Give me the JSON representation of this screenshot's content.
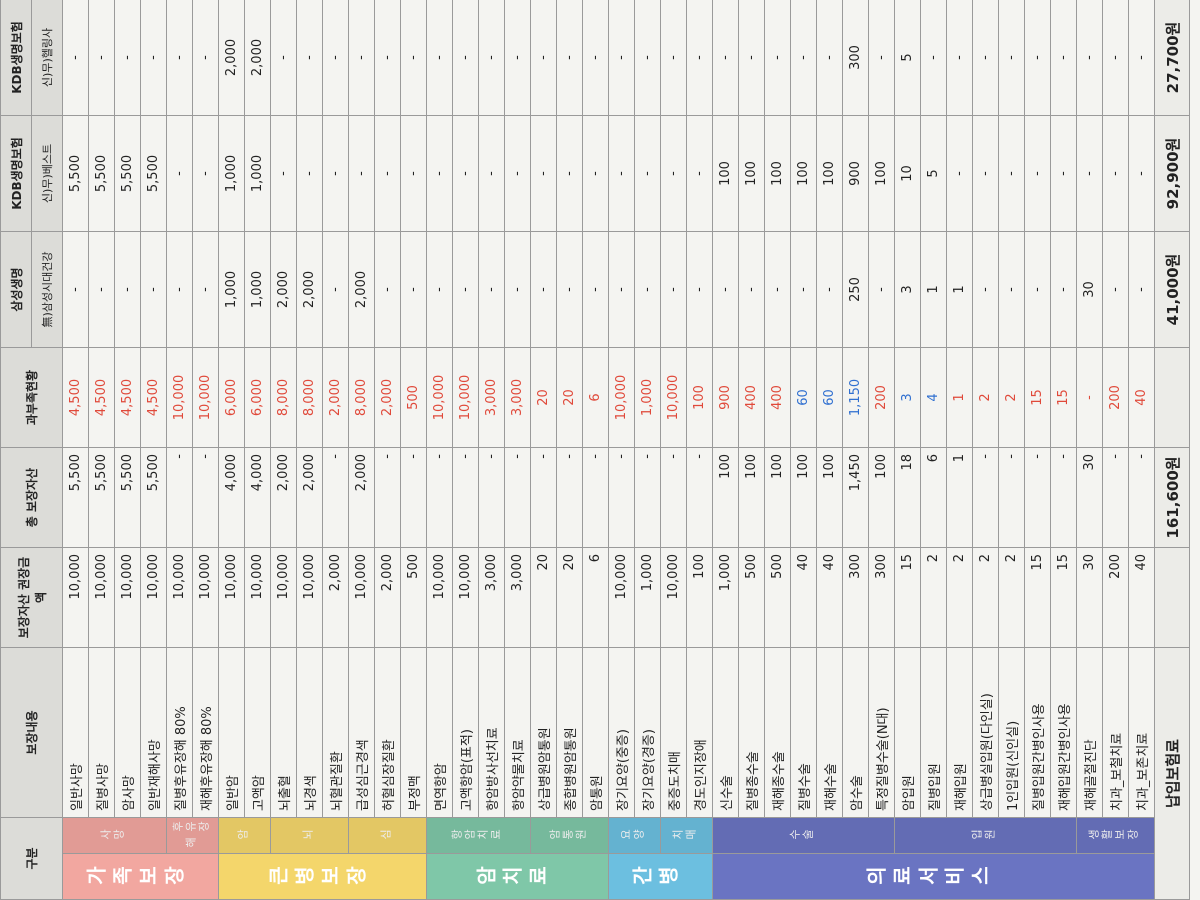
{
  "header": {
    "group": "구분",
    "content": "보장내용",
    "recommended": "보장자산 권장금액",
    "total": "총 보장자산",
    "gap": "과부족현황",
    "companies": [
      "삼성생명",
      "KDB생명보험",
      "KDB생명보험"
    ],
    "products": [
      "無)삼성시대건강",
      "신)무)베스트",
      "신)무)헬링사"
    ]
  },
  "groups": [
    {
      "label": "가족보장",
      "color": "#f2a7a0",
      "subs": [
        {
          "label": "사망",
          "rows": [
            {
              "cells": [
                "일반사망",
                "10,000",
                "5,500",
                "4,500",
                "-",
                "5,500",
                "-"
              ],
              "gap_color": "#e0493a"
            },
            {
              "cells": [
                "질병사망",
                "10,000",
                "5,500",
                "4,500",
                "-",
                "5,500",
                "-"
              ],
              "gap_color": "#e0493a"
            },
            {
              "cells": [
                "암사망",
                "10,000",
                "5,500",
                "4,500",
                "-",
                "5,500",
                "-"
              ],
              "gap_color": "#e0493a"
            },
            {
              "cells": [
                "일반재해사망",
                "10,000",
                "5,500",
                "4,500",
                "-",
                "5,500",
                "-"
              ],
              "gap_color": "#e0493a"
            }
          ]
        },
        {
          "label": "후유장해",
          "rows": [
            {
              "cells": [
                "질병후유장해 80%",
                "10,000",
                "-",
                "10,000",
                "-",
                "-",
                "-"
              ],
              "gap_color": "#e0493a"
            },
            {
              "cells": [
                "재해후유장해 80%",
                "10,000",
                "-",
                "10,000",
                "-",
                "-",
                "-"
              ],
              "gap_color": "#e0493a"
            }
          ]
        }
      ]
    },
    {
      "label": "큰병보장",
      "color": "#f4d66b",
      "subs": [
        {
          "label": "암",
          "rows": [
            {
              "cells": [
                "일반암",
                "10,000",
                "4,000",
                "6,000",
                "1,000",
                "1,000",
                "2,000"
              ],
              "gap_color": "#e0493a"
            },
            {
              "cells": [
                "고액암",
                "10,000",
                "4,000",
                "6,000",
                "1,000",
                "1,000",
                "2,000"
              ],
              "gap_color": "#e0493a"
            }
          ]
        },
        {
          "label": "뇌",
          "rows": [
            {
              "cells": [
                "뇌출혈",
                "10,000",
                "2,000",
                "8,000",
                "2,000",
                "-",
                "-"
              ],
              "gap_color": "#e0493a"
            },
            {
              "cells": [
                "뇌경색",
                "10,000",
                "2,000",
                "8,000",
                "2,000",
                "-",
                "-"
              ],
              "gap_color": "#e0493a"
            },
            {
              "cells": [
                "뇌혈관질환",
                "2,000",
                "-",
                "2,000",
                "-",
                "-",
                "-"
              ],
              "gap_color": "#e0493a"
            }
          ]
        },
        {
          "label": "심",
          "rows": [
            {
              "cells": [
                "급성심근경색",
                "10,000",
                "2,000",
                "8,000",
                "2,000",
                "-",
                "-"
              ],
              "gap_color": "#e0493a"
            },
            {
              "cells": [
                "허혈심장질환",
                "2,000",
                "-",
                "2,000",
                "-",
                "-",
                "-"
              ],
              "gap_color": "#e0493a"
            },
            {
              "cells": [
                "부정맥",
                "500",
                "-",
                "500",
                "-",
                "-",
                "-"
              ],
              "gap_color": "#e0493a"
            }
          ]
        }
      ]
    },
    {
      "label": "암치료",
      "color": "#7fc7a8",
      "subs": [
        {
          "label": "항암치료",
          "rows": [
            {
              "cells": [
                "면역항암",
                "10,000",
                "-",
                "10,000",
                "-",
                "-",
                "-"
              ],
              "gap_color": "#e0493a"
            },
            {
              "cells": [
                "고액항암(표적)",
                "10,000",
                "-",
                "10,000",
                "-",
                "-",
                "-"
              ],
              "gap_color": "#e0493a"
            },
            {
              "cells": [
                "항암방사선치료",
                "3,000",
                "-",
                "3,000",
                "-",
                "-",
                "-"
              ],
              "gap_color": "#e0493a"
            },
            {
              "cells": [
                "항암약물치료",
                "3,000",
                "-",
                "3,000",
                "-",
                "-",
                "-"
              ],
              "gap_color": "#e0493a"
            }
          ]
        },
        {
          "label": "암통원",
          "rows": [
            {
              "cells": [
                "상급병원암통원",
                "20",
                "-",
                "20",
                "-",
                "-",
                "-"
              ],
              "gap_color": "#e0493a"
            },
            {
              "cells": [
                "종합병원암통원",
                "20",
                "-",
                "20",
                "-",
                "-",
                "-"
              ],
              "gap_color": "#e0493a"
            },
            {
              "cells": [
                "암통원",
                "6",
                "-",
                "6",
                "-",
                "-",
                "-"
              ],
              "gap_color": "#e0493a"
            }
          ]
        }
      ]
    },
    {
      "label": "간병",
      "color": "#6cbfe0",
      "subs": [
        {
          "label": "요양",
          "rows": [
            {
              "cells": [
                "장기요양(중증)",
                "10,000",
                "-",
                "10,000",
                "-",
                "-",
                "-"
              ],
              "gap_color": "#e0493a"
            },
            {
              "cells": [
                "장기요양(경증)",
                "1,000",
                "-",
                "1,000",
                "-",
                "-",
                "-"
              ],
              "gap_color": "#e0493a"
            }
          ]
        },
        {
          "label": "치매",
          "rows": [
            {
              "cells": [
                "중증도치매",
                "10,000",
                "-",
                "10,000",
                "-",
                "-",
                "-"
              ],
              "gap_color": "#e0493a"
            },
            {
              "cells": [
                "경도인지장애",
                "100",
                "-",
                "100",
                "-",
                "-",
                "-"
              ],
              "gap_color": "#e0493a"
            }
          ]
        }
      ]
    },
    {
      "label": "의료서비스",
      "color": "#6a74c2",
      "subs": [
        {
          "label": "수술",
          "rows": [
            {
              "cells": [
                "신수술",
                "1,000",
                "100",
                "900",
                "-",
                "100",
                "-"
              ],
              "gap_color": "#e0493a"
            },
            {
              "cells": [
                "질병종수술",
                "500",
                "100",
                "400",
                "-",
                "100",
                "-"
              ],
              "gap_color": "#e0493a"
            },
            {
              "cells": [
                "재해종수술",
                "500",
                "100",
                "400",
                "-",
                "100",
                "-"
              ],
              "gap_color": "#e0493a"
            },
            {
              "cells": [
                "질병수술",
                "40",
                "100",
                "60",
                "-",
                "100",
                "-"
              ],
              "gap_color": "#2f6fd0"
            },
            {
              "cells": [
                "재해수술",
                "40",
                "100",
                "60",
                "-",
                "100",
                "-"
              ],
              "gap_color": "#2f6fd0"
            },
            {
              "cells": [
                "암수술",
                "300",
                "1,450",
                "1,150",
                "250",
                "900",
                "300"
              ],
              "gap_color": "#2f6fd0"
            },
            {
              "cells": [
                "특정질병수술(N대)",
                "300",
                "100",
                "200",
                "-",
                "100",
                "-"
              ],
              "gap_color": "#e0493a"
            }
          ]
        },
        {
          "label": "입원",
          "rows": [
            {
              "cells": [
                "암입원",
                "15",
                "18",
                "3",
                "3",
                "10",
                "5"
              ],
              "gap_color": "#2f6fd0"
            },
            {
              "cells": [
                "질병입원",
                "2",
                "6",
                "4",
                "1",
                "5",
                "-"
              ],
              "gap_color": "#2f6fd0"
            },
            {
              "cells": [
                "재해입원",
                "2",
                "1",
                "1",
                "1",
                "-",
                "-"
              ],
              "gap_color": "#e0493a"
            },
            {
              "cells": [
                "상급병실입원(다인실)",
                "2",
                "-",
                "2",
                "-",
                "-",
                "-"
              ],
              "gap_color": "#e0493a"
            },
            {
              "cells": [
                "1인입원(신인실)",
                "2",
                "-",
                "2",
                "-",
                "-",
                "-"
              ],
              "gap_color": "#e0493a"
            },
            {
              "cells": [
                "질병입원간병인사용",
                "15",
                "-",
                "15",
                "-",
                "-",
                "-"
              ],
              "gap_color": "#e0493a"
            },
            {
              "cells": [
                "재해입원간병인사용",
                "15",
                "-",
                "15",
                "-",
                "-",
                "-"
              ],
              "gap_color": "#e0493a"
            }
          ]
        },
        {
          "label": "생활보장",
          "rows": [
            {
              "cells": [
                "재해골절진단",
                "30",
                "30",
                "-",
                "30",
                "-",
                "-"
              ],
              "gap_color": "#e0493a"
            },
            {
              "cells": [
                "치과_보철치료",
                "200",
                "-",
                "200",
                "-",
                "-",
                "-"
              ],
              "gap_color": "#e0493a"
            },
            {
              "cells": [
                "치과_보존치료",
                "40",
                "-",
                "40",
                "-",
                "-",
                "-"
              ],
              "gap_color": "#e0493a"
            }
          ]
        }
      ]
    }
  ],
  "footer": {
    "label": "납입보험료",
    "total": "161,600원",
    "samsung": "41,000원",
    "kdb1": "92,900원",
    "kdb2": "27,700원"
  }
}
